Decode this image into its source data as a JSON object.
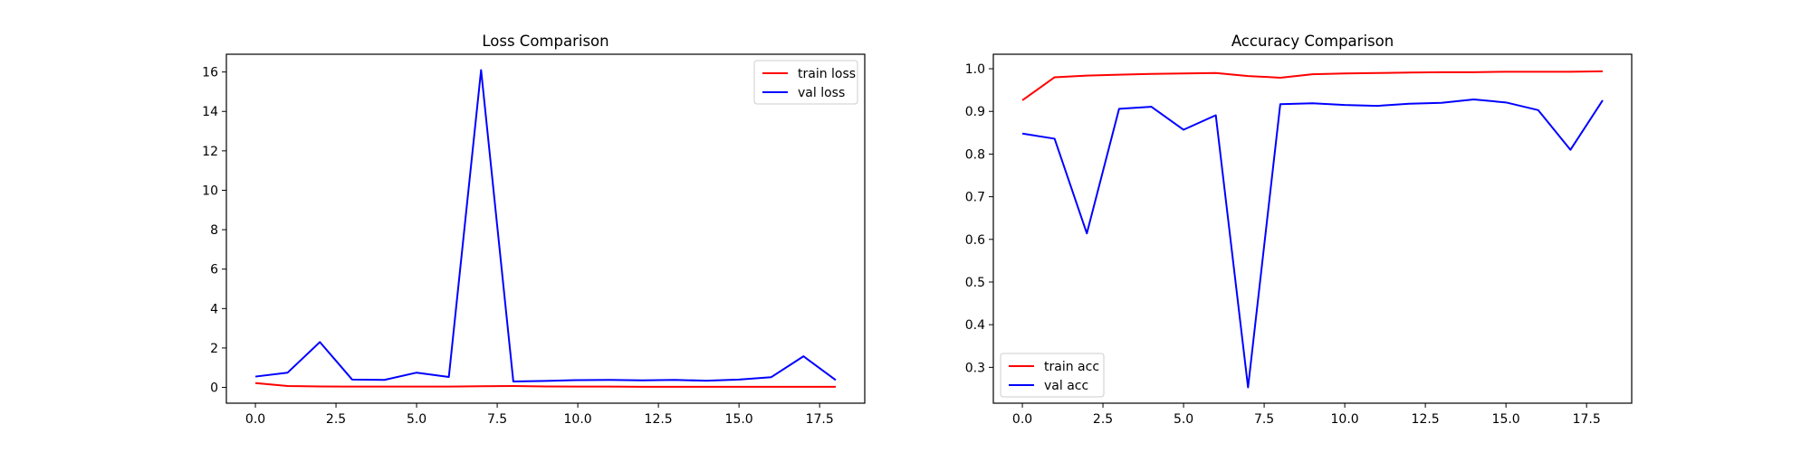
{
  "chart_data": [
    {
      "type": "line",
      "title": "Loss Comparison",
      "xlabel": "",
      "ylabel": "",
      "x": [
        0,
        1,
        2,
        3,
        4,
        5,
        6,
        7,
        8,
        9,
        10,
        11,
        12,
        13,
        14,
        15,
        16,
        17,
        18
      ],
      "xlim": [
        -0.9,
        18.9
      ],
      "ylim": [
        -0.8,
        16.9
      ],
      "xticks": [
        0.0,
        2.5,
        5.0,
        7.5,
        10.0,
        12.5,
        15.0,
        17.5
      ],
      "xtick_labels": [
        "0.0",
        "2.5",
        "5.0",
        "7.5",
        "10.0",
        "12.5",
        "15.0",
        "17.5"
      ],
      "yticks": [
        0,
        2,
        4,
        6,
        8,
        10,
        12,
        14,
        16
      ],
      "ytick_labels": [
        "0",
        "2",
        "4",
        "6",
        "8",
        "10",
        "12",
        "14",
        "16"
      ],
      "grid": false,
      "legend_position": "top-right",
      "series": [
        {
          "name": "train loss",
          "color": "#ff0000",
          "values": [
            0.22,
            0.07,
            0.05,
            0.04,
            0.04,
            0.04,
            0.04,
            0.06,
            0.07,
            0.05,
            0.04,
            0.04,
            0.03,
            0.03,
            0.03,
            0.03,
            0.03,
            0.03,
            0.03
          ]
        },
        {
          "name": "val loss",
          "color": "#0000ff",
          "values": [
            0.55,
            0.75,
            2.3,
            0.4,
            0.38,
            0.75,
            0.53,
            16.1,
            0.3,
            0.33,
            0.37,
            0.38,
            0.36,
            0.38,
            0.34,
            0.4,
            0.52,
            1.58,
            0.37
          ]
        }
      ]
    },
    {
      "type": "line",
      "title": "Accuracy Comparison",
      "xlabel": "",
      "ylabel": "",
      "x": [
        0,
        1,
        2,
        3,
        4,
        5,
        6,
        7,
        8,
        9,
        10,
        11,
        12,
        13,
        14,
        15,
        16,
        17,
        18
      ],
      "xlim": [
        -0.9,
        18.9
      ],
      "ylim": [
        0.216,
        1.034
      ],
      "xticks": [
        0.0,
        2.5,
        5.0,
        7.5,
        10.0,
        12.5,
        15.0,
        17.5
      ],
      "xtick_labels": [
        "0.0",
        "2.5",
        "5.0",
        "7.5",
        "10.0",
        "12.5",
        "15.0",
        "17.5"
      ],
      "yticks": [
        0.3,
        0.4,
        0.5,
        0.6,
        0.7,
        0.8,
        0.9,
        1.0
      ],
      "ytick_labels": [
        "0.3",
        "0.4",
        "0.5",
        "0.6",
        "0.7",
        "0.8",
        "0.9",
        "1.0"
      ],
      "grid": false,
      "legend_position": "bottom-left",
      "series": [
        {
          "name": "train acc",
          "color": "#ff0000",
          "values": [
            0.926,
            0.98,
            0.984,
            0.986,
            0.988,
            0.989,
            0.99,
            0.983,
            0.979,
            0.987,
            0.989,
            0.99,
            0.991,
            0.992,
            0.992,
            0.993,
            0.993,
            0.993,
            0.994
          ]
        },
        {
          "name": "val acc",
          "color": "#0000ff",
          "values": [
            0.848,
            0.836,
            0.614,
            0.906,
            0.911,
            0.857,
            0.891,
            0.253,
            0.917,
            0.919,
            0.915,
            0.913,
            0.918,
            0.92,
            0.928,
            0.921,
            0.903,
            0.81,
            0.926
          ]
        }
      ]
    }
  ]
}
